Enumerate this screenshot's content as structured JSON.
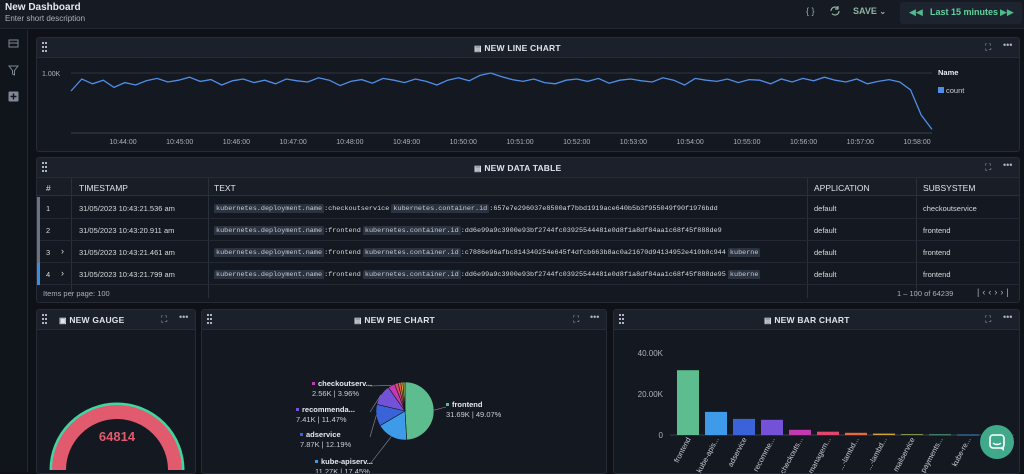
{
  "header": {
    "title": "New Dashboard",
    "description": "Enter short description",
    "code_icon": "{ }",
    "save_label": "SAVE",
    "time_range": "Last 15 minutes"
  },
  "sidebar": {
    "icons": [
      "list-icon",
      "filter-icon",
      "add-icon"
    ]
  },
  "line_chart": {
    "title": "NEW LINE CHART",
    "legend_title": "Name",
    "chart_data": {
      "type": "line",
      "title": "NEW LINE CHART",
      "ytick": "1.00K",
      "x_ticks": [
        "10:44:00",
        "10:45:00",
        "10:46:00",
        "10:47:00",
        "10:48:00",
        "10:49:00",
        "10:50:00",
        "10:51:00",
        "10:52:00",
        "10:53:00",
        "10:54:00",
        "10:55:00",
        "10:56:00",
        "10:57:00",
        "10:58:00"
      ],
      "series": [
        {
          "name": "count",
          "color": "#4f8ee8",
          "values": [
            700,
            900,
            820,
            880,
            760,
            840,
            800,
            870,
            910,
            850,
            880,
            930,
            860,
            890,
            800,
            870,
            900,
            840,
            880,
            820,
            900,
            870,
            850,
            920,
            880,
            790,
            860,
            890,
            830,
            910,
            880,
            840,
            900,
            860,
            800,
            880,
            920,
            870,
            960,
            1000,
            940,
            890,
            860,
            900,
            840,
            820,
            880,
            900,
            860,
            910,
            830,
            880,
            900,
            870,
            850,
            920,
            880,
            800,
            910,
            880,
            860,
            900,
            840,
            890,
            880,
            820,
            900,
            850,
            910,
            870,
            930,
            880,
            850,
            900,
            820,
            860,
            890,
            850,
            720,
            300,
            60
          ]
        }
      ]
    }
  },
  "table": {
    "title": "NEW DATA TABLE",
    "headers": [
      "#",
      "TIMESTAMP",
      "TEXT",
      "APPLICATION",
      "SUBSYSTEM"
    ],
    "rows": [
      {
        "n": "1",
        "ts": "31/05/2023 10:43:21.536 am",
        "k1": "kubernetes.deployment.name",
        "v1": ":checkoutservice",
        "k2": "kubernetes.container.id",
        "v2": ":657e7e296037e8500af7bbd1919ace640b5b3f955049f90f1976bdd",
        "k3": "",
        "app": "default",
        "sub": "checkoutservice",
        "color": "#6b7280"
      },
      {
        "n": "2",
        "ts": "31/05/2023 10:43:20.911 am",
        "k1": "kubernetes.deployment.name",
        "v1": ":frontend",
        "k2": "kubernetes.container.id",
        "v2": ":dd6e99a9c3900e93bf2744fc03925544481e0d8f1a8df84aa1c68f45f888de9",
        "k3": "",
        "app": "default",
        "sub": "frontend",
        "color": "#6b7280"
      },
      {
        "n": "3",
        "ts": "31/05/2023 10:43:21.461 am",
        "k1": "kubernetes.deployment.name",
        "v1": ":frontend",
        "k2": "kubernetes.container.id",
        "v2": ":c7886e96afbc814340254e645f4dfcb663b8ac0a21670d94134952e410b0c944",
        "k3": "kuberne",
        "app": "default",
        "sub": "frontend",
        "color": "#6b7280"
      },
      {
        "n": "4",
        "ts": "31/05/2023 10:43:21.799 am",
        "k1": "kubernetes.deployment.name",
        "v1": ":frontend",
        "k2": "kubernetes.container.id",
        "v2": ":dd6e99a9c3900e93bf2744fc03925544481e0d8f1a8df84aa1c68f45f888de95",
        "k3": "kuberne",
        "app": "default",
        "sub": "frontend",
        "color": "#3b8de0"
      }
    ],
    "items_per_page": "Items per page: 100",
    "pagination": "1 – 100 of 64239"
  },
  "gauge": {
    "title": "NEW GAUGE",
    "value": "64814",
    "fill": 1.0
  },
  "pie": {
    "title": "NEW PIE CHART",
    "chart_data": {
      "type": "pie",
      "slices": [
        {
          "name": "frontend",
          "label": "31.69K | 49.07%",
          "value": 49.07,
          "color": "#5dbd8f"
        },
        {
          "name": "kube-apiserv...",
          "label": "11.27K | 17.45%",
          "value": 17.45,
          "color": "#3d9be9"
        },
        {
          "name": "adservice",
          "label": "7.87K | 12.19%",
          "value": 12.19,
          "color": "#3b63d8"
        },
        {
          "name": "recommenda...",
          "label": "7.41K | 11.47%",
          "value": 11.47,
          "color": "#7452d8"
        },
        {
          "name": "checkoutserv...",
          "label": "2.56K | 3.96%",
          "value": 3.96,
          "color": "#c23ab0"
        },
        {
          "name": "",
          "label": "",
          "value": 2.0,
          "color": "#e2456e"
        },
        {
          "name": "",
          "label": "",
          "value": 1.5,
          "color": "#e86a3a"
        },
        {
          "name": "",
          "label": "",
          "value": 1.2,
          "color": "#d4a437"
        },
        {
          "name": "",
          "label": "",
          "value": 1.15,
          "color": "#9ab05a"
        }
      ]
    }
  },
  "bar": {
    "title": "NEW BAR CHART",
    "chart_data": {
      "type": "bar",
      "yticks": [
        "40.00K",
        "20.00K",
        "0"
      ],
      "ylim": [
        0,
        44000
      ],
      "categories": [
        "frontend",
        "kube-apis...",
        "adservice",
        "recomme...",
        "checkouts...",
        "managem...",
        "...-lambd...",
        "...-lambd...",
        "mailservice",
        "payments...",
        "kube-re..."
      ],
      "values": [
        31690,
        11270,
        7870,
        7410,
        2560,
        1600,
        1100,
        700,
        400,
        300,
        200
      ],
      "colors": [
        "#5dbd8f",
        "#3d9be9",
        "#3b63d8",
        "#7452d8",
        "#c23ab0",
        "#e2456e",
        "#e86a3a",
        "#d4a437",
        "#9ab05a",
        "#5dbd8f",
        "#3d9be9"
      ]
    }
  }
}
